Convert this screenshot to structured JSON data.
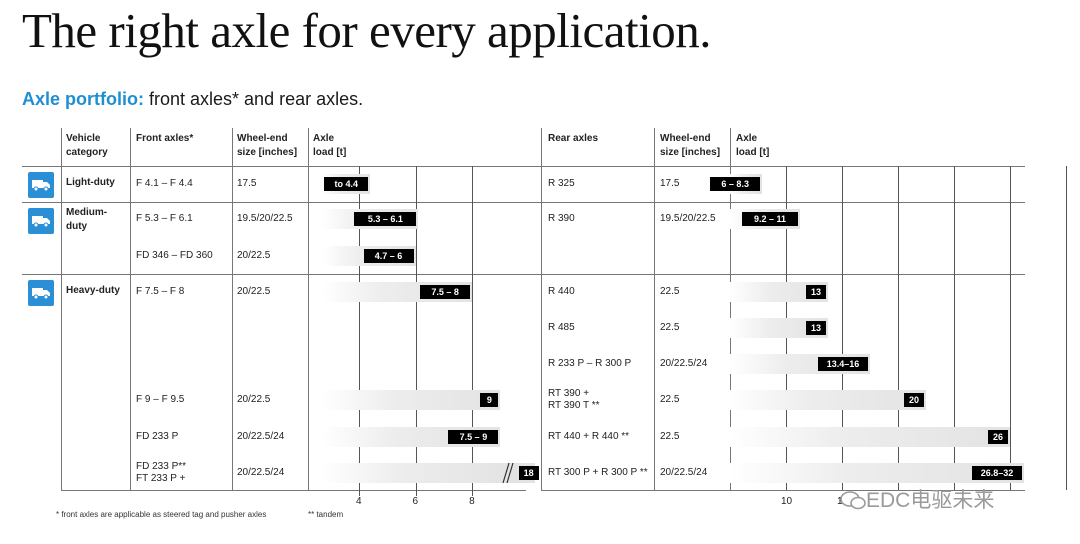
{
  "title": "The right axle for every application.",
  "subtitle": {
    "highlight": "Axle portfolio:",
    "rest": " front axles* and rear axles."
  },
  "front_headers": {
    "category": "Vehicle category",
    "axles": "Front axles*",
    "wheel": "Wheel-end size [inches]",
    "load": "Axle load [t]"
  },
  "rear_headers": {
    "axles": "Rear axles",
    "wheel": "Wheel-end size [inches]",
    "load": "Axle load [t]"
  },
  "categories": [
    {
      "name": "Light-duty",
      "icon": "light-truck-icon"
    },
    {
      "name": "Medium-duty",
      "icon": "medium-truck-icon"
    },
    {
      "name": "Heavy-duty",
      "icon": "heavy-truck-icon"
    }
  ],
  "front_rows": [
    {
      "axle": "F 4.1 – F 4.4",
      "wheel": "17.5",
      "label": "to 4.4",
      "min": 2.7,
      "max": 4.4
    },
    {
      "axle": "F 5.3 – F 6.1",
      "wheel": "19.5/20/22.5",
      "label": "5.3 – 6.1",
      "min": 2.7,
      "max": 6.1
    },
    {
      "axle": "FD 346 – FD 360",
      "wheel": "20/22.5",
      "label": "4.7 – 6",
      "min": 2.7,
      "max": 6.0
    },
    {
      "axle": "F 7.5 – F 8",
      "wheel": "20/22.5",
      "label": "7.5 – 8",
      "min": 2.7,
      "max": 8.0
    },
    {
      "axle": "F 9 – F 9.5",
      "wheel": "20/22.5",
      "label": "9",
      "min": 2.7,
      "max": 9.0
    },
    {
      "axle": "FD 233 P",
      "wheel": "20/22.5/24",
      "label": "7.5 – 9",
      "min": 2.7,
      "max": 9.0
    },
    {
      "axle": "FD 233 P**\nFT 233 P +",
      "wheel": "20/22.5/24",
      "label": "18",
      "min": 2.7,
      "max": 9.5,
      "broken": true
    }
  ],
  "rear_rows": [
    {
      "axle": "R 325",
      "wheel": "17.5",
      "label": "6 – 8.3",
      "min": 6.0,
      "max": 8.3
    },
    {
      "axle": "R 390",
      "wheel": "19.5/20/22.5",
      "label": "9.2 – 11",
      "min": 6.0,
      "max": 11.0
    },
    {
      "axle": "R 440",
      "wheel": "22.5",
      "label": "13",
      "min": 6.0,
      "max": 13.0
    },
    {
      "axle": "R 485",
      "wheel": "22.5",
      "label": "13",
      "min": 6.0,
      "max": 13.0
    },
    {
      "axle": "R 233 P – R 300 P",
      "wheel": "20/22.5/24",
      "label": "13.4–16",
      "min": 6.0,
      "max": 16.0
    },
    {
      "axle": "RT 390 +\nRT 390 T **",
      "wheel": "22.5",
      "label": "20",
      "min": 6.0,
      "max": 20.0
    },
    {
      "axle": "RT 440 + R 440 **",
      "wheel": "22.5",
      "label": "26",
      "min": 6.0,
      "max": 26.0
    },
    {
      "axle": "RT 300 P + R 300 P **",
      "wheel": "20/22.5/24",
      "label": "26.8–32",
      "min": 6.0,
      "max": 32.0
    }
  ],
  "front_ticks": [
    "4",
    "6",
    "8"
  ],
  "rear_ticks": [
    "10",
    "1"
  ],
  "footnote": {
    "a": "*  front axles are applicable as steered tag and pusher axles",
    "b": "**  tandem"
  },
  "watermark": "EDC电驱未来",
  "colors": {
    "accent": "#1e8fd0",
    "icon_bg": "#2a8fd4",
    "badge": "#000000"
  }
}
